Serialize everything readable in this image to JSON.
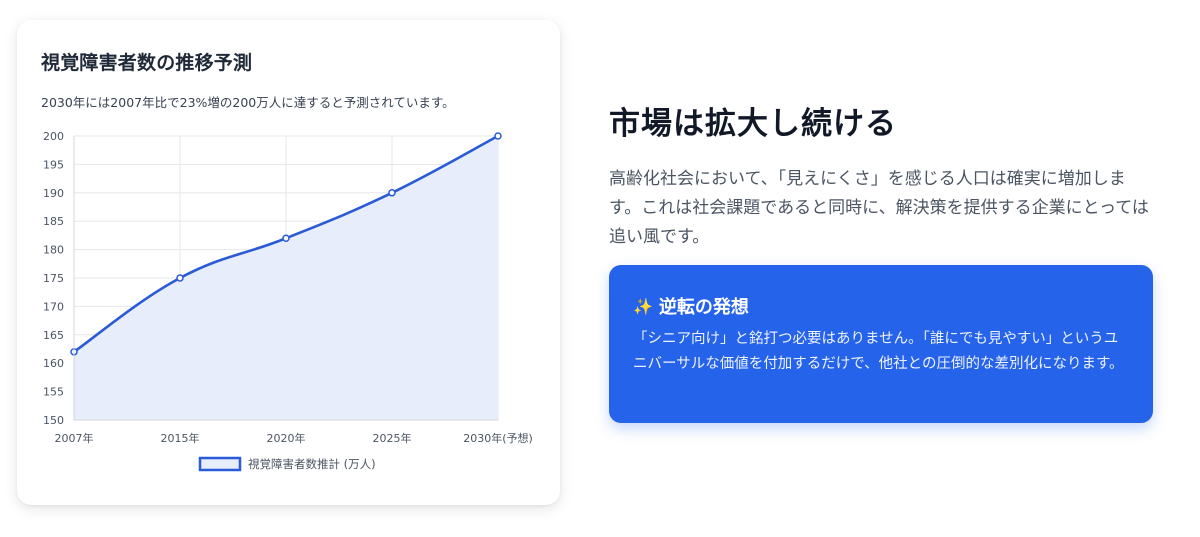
{
  "card": {
    "title": "視覚障害者数の推移予測",
    "description": "2030年には2007年比で23%増の200万人に達すると予測されています。"
  },
  "right": {
    "headline": "市場は拡大し続ける",
    "body": "高齢化社会において、「見えにくさ」を感じる人口は確実に増加します。これは社会課題であると同時に、解決策を提供する企業にとっては追い風です。"
  },
  "insight": {
    "icon": "sparkles-icon",
    "title": "逆転の発想",
    "text": "「シニア向け」と銘打つ必要はありません。「誰にでも見やすい」というユニバーサルな価値を付加するだけで、他社との圧倒的な差別化になります。"
  },
  "colors": {
    "line": "#2a5bd7",
    "fill": "#e8edfb",
    "accent": "#2563eb"
  },
  "chart_data": {
    "type": "line",
    "categories": [
      "2007年",
      "2015年",
      "2020年",
      "2025年",
      "2030年(予想)"
    ],
    "series": [
      {
        "name": "視覚障害者数推計 (万人)",
        "values": [
          162,
          175,
          182,
          190,
          200
        ]
      }
    ],
    "ylim": [
      150,
      200
    ],
    "yticks": [
      150,
      155,
      160,
      165,
      170,
      175,
      180,
      185,
      190,
      195,
      200
    ],
    "grid": true,
    "area_fill": true,
    "legend": "bottom"
  }
}
